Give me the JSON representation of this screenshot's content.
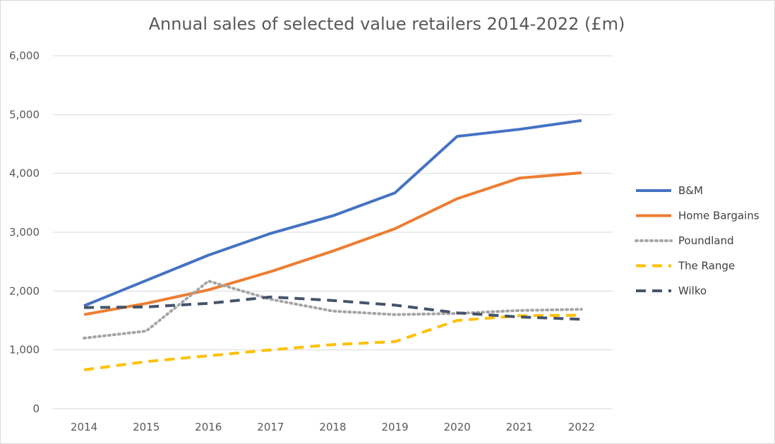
{
  "chart_data": {
    "type": "line",
    "title": "Annual sales of selected value retailers 2014-2022 (£m)",
    "xlabel": "",
    "ylabel": "",
    "categories": [
      "2014",
      "2015",
      "2016",
      "2017",
      "2018",
      "2019",
      "2020",
      "2021",
      "2022"
    ],
    "ylim": [
      0,
      6000
    ],
    "yticks": [
      0,
      1000,
      2000,
      3000,
      4000,
      5000,
      6000
    ],
    "ytick_labels": [
      "0",
      "1,000",
      "2,000",
      "3,000",
      "4,000",
      "5,000",
      "6,000"
    ],
    "grid": true,
    "legend_position": "right",
    "series": [
      {
        "name": "B&M",
        "color": "#4472C4",
        "dash": "solid",
        "values": [
          1750,
          2180,
          2610,
          2980,
          3280,
          3670,
          4630,
          4750,
          4900
        ]
      },
      {
        "name": "Home Bargains",
        "color": "#ED7D31",
        "dash": "solid",
        "values": [
          1600,
          1790,
          2020,
          2330,
          2680,
          3060,
          3570,
          3920,
          4010
        ]
      },
      {
        "name": "Poundland",
        "color": "#A5A5A5",
        "dash": "dotted",
        "values": [
          1200,
          1320,
          2170,
          1860,
          1660,
          1600,
          1620,
          1670,
          1690
        ]
      },
      {
        "name": "The Range",
        "color": "#FFC000",
        "dash": "dashed",
        "values": [
          660,
          800,
          900,
          1000,
          1090,
          1140,
          1500,
          1580,
          1590
        ]
      },
      {
        "name": "Wilko",
        "color": "#44546A",
        "dash": "dashed",
        "values": [
          1720,
          1730,
          1790,
          1900,
          1840,
          1760,
          1630,
          1560,
          1520
        ]
      }
    ]
  }
}
